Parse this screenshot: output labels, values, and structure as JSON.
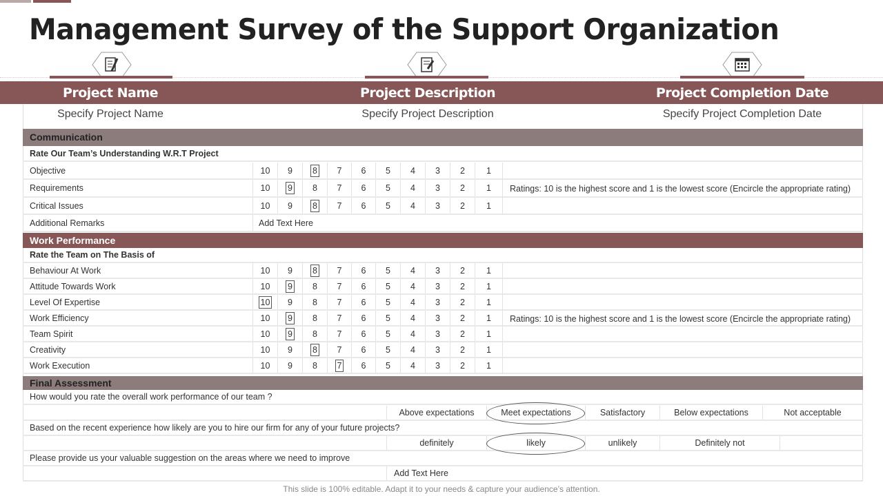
{
  "title": "Management Survey of the Support Organization",
  "header": {
    "columns": [
      {
        "label": "Project Name",
        "value": "Specify Project Name",
        "icon": "survey-pencil-icon"
      },
      {
        "label": "Project Description",
        "value": "Specify Project Description",
        "icon": "document-edit-icon"
      },
      {
        "label": "Project Completion Date",
        "value": "Specify Project Completion Date",
        "icon": "calendar-icon"
      }
    ]
  },
  "scale": [
    "10",
    "9",
    "8",
    "7",
    "6",
    "5",
    "4",
    "3",
    "2",
    "1"
  ],
  "communication": {
    "title": "Communication",
    "subtitle": "Rate Our Team’s Understanding  W.R.T Project",
    "note": "Ratings: 10 is the highest score and 1 is the lowest score (Encircle the appropriate rating)",
    "rows": [
      {
        "label": "Objective",
        "selected": "8"
      },
      {
        "label": "Requirements",
        "selected": "9"
      },
      {
        "label": "Critical Issues",
        "selected": "8"
      }
    ],
    "remarks_label": "Additional Remarks",
    "remarks_value": "Add Text Here"
  },
  "work": {
    "title": "Work Performance",
    "subtitle": "Rate the Team on The Basis  of",
    "note": "Ratings: 10 is the highest score and 1 is the lowest score (Encircle the appropriate rating)",
    "rows": [
      {
        "label": "Behaviour  At Work",
        "selected": "8"
      },
      {
        "label": "Attitude Towards  Work",
        "selected": "9"
      },
      {
        "label": "Level  Of Expertise",
        "selected": "10"
      },
      {
        "label": "Work Efficiency",
        "selected": "9"
      },
      {
        "label": "Team  Spirit",
        "selected": "9"
      },
      {
        "label": "Creativity",
        "selected": "8"
      },
      {
        "label": "Work Execution",
        "selected": "7"
      }
    ]
  },
  "final": {
    "title": "Final Assessment",
    "q1": "How would you rate the overall  work performance  of our team ?",
    "q1_options": [
      "Above expectations",
      "Meet expectations",
      "Satisfactory",
      "Below expectations",
      "Not acceptable"
    ],
    "q1_selected": "Meet expectations",
    "q2": "Based on the recent experience how likely are you to hire our firm for any of your future  projects?",
    "q2_options": [
      "definitely",
      "likely",
      "unlikely",
      "Definitely not"
    ],
    "q2_selected": "likely",
    "q3": "Please provide  us your valuable  suggestion on the areas  where  we  need to improve",
    "q3_value": "Add Text Here"
  },
  "footer": "This slide is 100% editable. Adapt it to your needs & capture your audience’s attention.",
  "colors": {
    "accent": "#875656",
    "section": "#8c7c7c"
  }
}
